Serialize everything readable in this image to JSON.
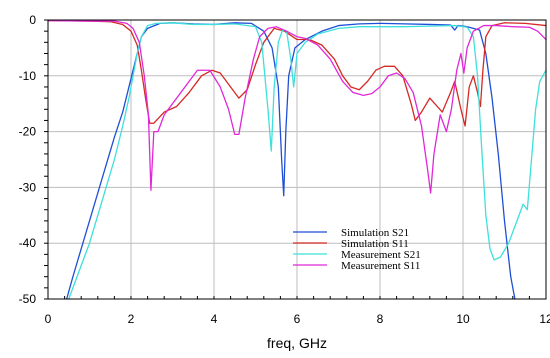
{
  "chart_data": {
    "type": "line",
    "xlabel": "freq, GHz",
    "ylabel": "",
    "xlim": [
      0,
      12
    ],
    "ylim": [
      -50,
      0
    ],
    "x_ticks": [
      0,
      2,
      4,
      6,
      8,
      10,
      12
    ],
    "y_ticks": [
      0,
      -10,
      -20,
      -30,
      -40,
      -50
    ],
    "grid": true,
    "legend_position": "center-right",
    "series": [
      {
        "name": "Simulation S21",
        "color": "#1f4fd6",
        "points": [
          [
            0.45,
            -50
          ],
          [
            0.6,
            -46
          ],
          [
            0.8,
            -41
          ],
          [
            1.0,
            -36
          ],
          [
            1.2,
            -31
          ],
          [
            1.4,
            -26
          ],
          [
            1.6,
            -21
          ],
          [
            1.8,
            -16.5
          ],
          [
            1.95,
            -12
          ],
          [
            2.05,
            -9
          ],
          [
            2.15,
            -6
          ],
          [
            2.25,
            -3
          ],
          [
            2.4,
            -1.5
          ],
          [
            2.7,
            -0.6
          ],
          [
            3.0,
            -0.5
          ],
          [
            3.5,
            -0.7
          ],
          [
            4.0,
            -0.8
          ],
          [
            4.5,
            -0.5
          ],
          [
            4.9,
            -0.6
          ],
          [
            5.2,
            -2
          ],
          [
            5.4,
            -5
          ],
          [
            5.55,
            -12
          ],
          [
            5.63,
            -25
          ],
          [
            5.68,
            -31.5
          ],
          [
            5.73,
            -20
          ],
          [
            5.8,
            -10
          ],
          [
            5.95,
            -5
          ],
          [
            6.2,
            -3.5
          ],
          [
            6.6,
            -2
          ],
          [
            7.0,
            -1
          ],
          [
            7.5,
            -0.7
          ],
          [
            8.0,
            -0.6
          ],
          [
            8.6,
            -0.7
          ],
          [
            9.2,
            -0.8
          ],
          [
            9.7,
            -0.9
          ],
          [
            9.8,
            -1.8
          ],
          [
            9.88,
            -1
          ],
          [
            10.1,
            -1.2
          ],
          [
            10.4,
            -1.8
          ],
          [
            10.55,
            -6
          ],
          [
            10.7,
            -14
          ],
          [
            10.85,
            -24
          ],
          [
            11.0,
            -36
          ],
          [
            11.15,
            -46
          ],
          [
            11.25,
            -50
          ]
        ]
      },
      {
        "name": "Simulation S11",
        "color": "#d42a24",
        "points": [
          [
            0,
            -0.1
          ],
          [
            1.0,
            -0.2
          ],
          [
            1.5,
            -0.3
          ],
          [
            1.8,
            -0.8
          ],
          [
            2.0,
            -2
          ],
          [
            2.15,
            -4.5
          ],
          [
            2.25,
            -9
          ],
          [
            2.35,
            -14
          ],
          [
            2.45,
            -18.5
          ],
          [
            2.55,
            -18.5
          ],
          [
            2.8,
            -16.5
          ],
          [
            3.1,
            -15.5
          ],
          [
            3.4,
            -13
          ],
          [
            3.7,
            -10
          ],
          [
            3.95,
            -9
          ],
          [
            4.15,
            -9.5
          ],
          [
            4.4,
            -12
          ],
          [
            4.6,
            -14
          ],
          [
            4.8,
            -12.5
          ],
          [
            5.0,
            -8
          ],
          [
            5.2,
            -4
          ],
          [
            5.45,
            -1.5
          ],
          [
            5.7,
            -2
          ],
          [
            6.0,
            -3.5
          ],
          [
            6.3,
            -3.5
          ],
          [
            6.6,
            -4.5
          ],
          [
            6.9,
            -7
          ],
          [
            7.1,
            -10
          ],
          [
            7.3,
            -12
          ],
          [
            7.5,
            -12.5
          ],
          [
            7.7,
            -11
          ],
          [
            7.9,
            -9
          ],
          [
            8.1,
            -8.3
          ],
          [
            8.35,
            -8.3
          ],
          [
            8.55,
            -10
          ],
          [
            8.75,
            -15
          ],
          [
            8.85,
            -18
          ],
          [
            9.0,
            -16.5
          ],
          [
            9.2,
            -14
          ],
          [
            9.5,
            -16.5
          ],
          [
            9.7,
            -13
          ],
          [
            9.8,
            -11
          ],
          [
            9.95,
            -16
          ],
          [
            10.05,
            -19
          ],
          [
            10.15,
            -12
          ],
          [
            10.25,
            -10
          ],
          [
            10.35,
            -13
          ],
          [
            10.42,
            -15.5
          ],
          [
            10.48,
            -9
          ],
          [
            10.55,
            -3
          ],
          [
            10.7,
            -1
          ],
          [
            11.0,
            -0.5
          ],
          [
            11.5,
            -0.6
          ],
          [
            12,
            -1
          ]
        ]
      },
      {
        "name": "Measurement S21",
        "color": "#3ee0dc",
        "points": [
          [
            0.5,
            -50
          ],
          [
            0.8,
            -44
          ],
          [
            1.0,
            -40
          ],
          [
            1.2,
            -35
          ],
          [
            1.4,
            -30
          ],
          [
            1.6,
            -25
          ],
          [
            1.8,
            -19
          ],
          [
            1.95,
            -14
          ],
          [
            2.05,
            -10
          ],
          [
            2.15,
            -6
          ],
          [
            2.25,
            -3
          ],
          [
            2.4,
            -1
          ],
          [
            2.6,
            -0.6
          ],
          [
            3.0,
            -0.5
          ],
          [
            3.5,
            -0.8
          ],
          [
            4.0,
            -0.8
          ],
          [
            4.5,
            -0.7
          ],
          [
            5.0,
            -1.2
          ],
          [
            5.15,
            -4
          ],
          [
            5.3,
            -16
          ],
          [
            5.38,
            -23.5
          ],
          [
            5.45,
            -12
          ],
          [
            5.55,
            -4
          ],
          [
            5.65,
            -1.8
          ],
          [
            5.75,
            -2
          ],
          [
            5.85,
            -7
          ],
          [
            5.92,
            -12
          ],
          [
            6.0,
            -6
          ],
          [
            6.2,
            -4
          ],
          [
            6.5,
            -2.5
          ],
          [
            7.0,
            -1.5
          ],
          [
            7.5,
            -1.2
          ],
          [
            8.0,
            -1.2
          ],
          [
            8.6,
            -1.2
          ],
          [
            9.2,
            -1.1
          ],
          [
            9.8,
            -1
          ],
          [
            10.1,
            -1.3
          ],
          [
            10.25,
            -3
          ],
          [
            10.35,
            -10
          ],
          [
            10.45,
            -23
          ],
          [
            10.55,
            -35
          ],
          [
            10.65,
            -41
          ],
          [
            10.75,
            -43
          ],
          [
            10.9,
            -42.5
          ],
          [
            11.1,
            -40
          ],
          [
            11.3,
            -36
          ],
          [
            11.45,
            -33
          ],
          [
            11.55,
            -34
          ],
          [
            11.65,
            -25
          ],
          [
            11.75,
            -16
          ],
          [
            11.85,
            -11
          ],
          [
            12,
            -9
          ]
        ]
      },
      {
        "name": "Measurement S11",
        "color": "#e028d8",
        "points": [
          [
            0,
            -0.1
          ],
          [
            1.0,
            -0.2
          ],
          [
            1.6,
            -0.2
          ],
          [
            1.9,
            -0.6
          ],
          [
            2.05,
            -1.5
          ],
          [
            2.2,
            -4
          ],
          [
            2.32,
            -10
          ],
          [
            2.42,
            -17
          ],
          [
            2.48,
            -30.5
          ],
          [
            2.55,
            -20
          ],
          [
            2.65,
            -20
          ],
          [
            2.8,
            -17
          ],
          [
            3.0,
            -15
          ],
          [
            3.3,
            -12
          ],
          [
            3.6,
            -9
          ],
          [
            3.9,
            -9
          ],
          [
            4.15,
            -12
          ],
          [
            4.35,
            -16
          ],
          [
            4.5,
            -20.5
          ],
          [
            4.6,
            -20.5
          ],
          [
            4.75,
            -14
          ],
          [
            4.95,
            -7
          ],
          [
            5.1,
            -3
          ],
          [
            5.3,
            -1.5
          ],
          [
            5.5,
            -1.2
          ],
          [
            5.75,
            -2
          ],
          [
            6.0,
            -3
          ],
          [
            6.2,
            -3.3
          ],
          [
            6.5,
            -4.5
          ],
          [
            6.8,
            -7
          ],
          [
            7.1,
            -11
          ],
          [
            7.35,
            -13
          ],
          [
            7.6,
            -13.5
          ],
          [
            7.8,
            -13.2
          ],
          [
            8.0,
            -12
          ],
          [
            8.2,
            -10
          ],
          [
            8.4,
            -9.5
          ],
          [
            8.6,
            -10.5
          ],
          [
            8.8,
            -13
          ],
          [
            9.0,
            -19
          ],
          [
            9.15,
            -27
          ],
          [
            9.22,
            -31
          ],
          [
            9.3,
            -24
          ],
          [
            9.45,
            -17
          ],
          [
            9.6,
            -20
          ],
          [
            9.72,
            -16
          ],
          [
            9.85,
            -9
          ],
          [
            9.95,
            -6
          ],
          [
            10.02,
            -9.5
          ],
          [
            10.1,
            -5
          ],
          [
            10.25,
            -2
          ],
          [
            10.5,
            -1
          ],
          [
            10.8,
            -1
          ],
          [
            11.2,
            -1.2
          ],
          [
            11.6,
            -1.3
          ],
          [
            11.8,
            -2
          ],
          [
            12,
            -3.5
          ]
        ]
      }
    ]
  }
}
